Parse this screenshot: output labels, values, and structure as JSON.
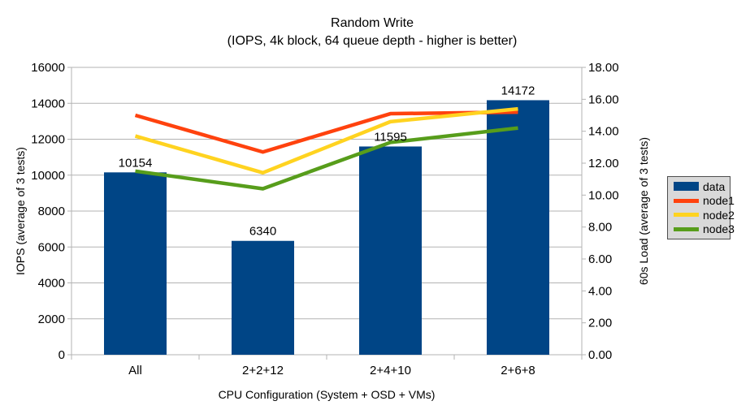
{
  "chart_data": {
    "type": "bar+line combo",
    "title": "Random Write",
    "subtitle": "(IOPS, 4k block, 64 queue depth - higher is better)",
    "xlabel": "CPU Configuration (System + OSD + VMs)",
    "ylabel_left": "IOPS (average of 3 tests)",
    "ylabel_right": "60s Load (average of 3 tests)",
    "categories": [
      "All",
      "2+2+12",
      "2+4+10",
      "2+6+8"
    ],
    "ylim_left": [
      0,
      16000
    ],
    "ytick_step_left": 2000,
    "ylim_right": [
      0,
      18
    ],
    "ytick_step_right": 2,
    "grid": true,
    "legend_position": "right",
    "colors": {
      "grid": "#b3b3b3",
      "axis": "#b3b3b3",
      "bar": "#004586",
      "node1": "#ff420e",
      "node2": "#ffd320",
      "node3": "#579d1b",
      "legend_bg": "#d9d9d9",
      "legend_border": "#4d4d4d"
    },
    "series": [
      {
        "name": "data",
        "type": "bar",
        "axis": "left",
        "color": "#004586",
        "values": [
          10154,
          6340,
          11595,
          14172
        ],
        "data_labels": [
          "10154",
          "6340",
          "11595",
          "14172"
        ]
      },
      {
        "name": "node1",
        "type": "line",
        "axis": "right",
        "color": "#ff420e",
        "values": [
          15.0,
          12.7,
          15.1,
          15.2
        ]
      },
      {
        "name": "node2",
        "type": "line",
        "axis": "right",
        "color": "#ffd320",
        "values": [
          13.7,
          11.4,
          14.6,
          15.4
        ]
      },
      {
        "name": "node3",
        "type": "line",
        "axis": "right",
        "color": "#579d1b",
        "values": [
          11.5,
          10.4,
          13.3,
          14.2
        ]
      }
    ]
  }
}
